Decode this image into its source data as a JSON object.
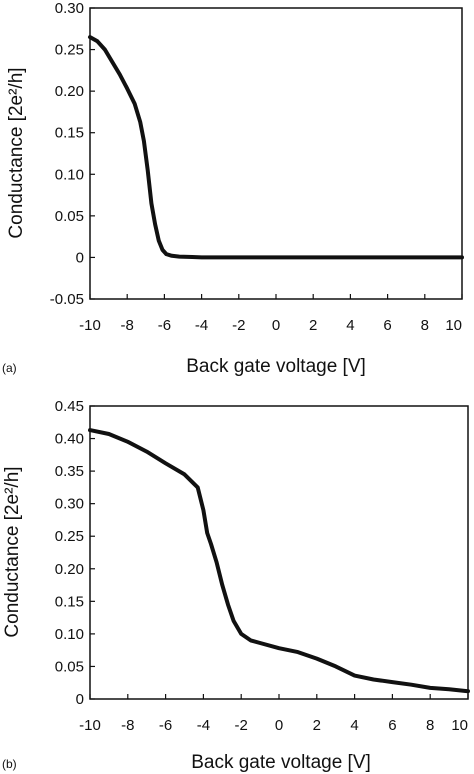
{
  "chart_data": [
    {
      "type": "line",
      "panel_label": "(a)",
      "xlabel": "Back gate voltage [V]",
      "ylabel": "Conductance [2e²/h]",
      "xlim": [
        -10,
        10
      ],
      "ylim": [
        -0.05,
        0.3
      ],
      "xticks": [
        "-10",
        "-8",
        "-6",
        "-4",
        "-2",
        "0",
        "2",
        "4",
        "6",
        "8",
        "10"
      ],
      "yticks": [
        "-0.05",
        "0",
        "0.05",
        "0.10",
        "0.15",
        "0.20",
        "0.25",
        "0.30"
      ],
      "grid": false,
      "series": [
        {
          "x": [
            -10,
            -9.6,
            -9.2,
            -8.8,
            -8.4,
            -8.0,
            -7.6,
            -7.3,
            -7.1,
            -6.9,
            -6.7,
            -6.5,
            -6.3,
            -6.1,
            -5.9,
            -5.6,
            -5.2,
            -4.5,
            -4.0,
            -2,
            0,
            2,
            4,
            6,
            8,
            10
          ],
          "y": [
            0.265,
            0.26,
            0.25,
            0.235,
            0.22,
            0.203,
            0.185,
            0.163,
            0.14,
            0.105,
            0.065,
            0.04,
            0.02,
            0.009,
            0.004,
            0.002,
            0.001,
            0.0005,
            0.0,
            0.0,
            0.0,
            0.0,
            0.0,
            0.0,
            0.0,
            0.0
          ]
        }
      ]
    },
    {
      "type": "line",
      "panel_label": "(b)",
      "xlabel": "Back gate voltage [V]",
      "ylabel": "Conductance [2e²/h]",
      "xlim": [
        -10,
        10
      ],
      "ylim": [
        0,
        0.45
      ],
      "xticks": [
        "-10",
        "-8",
        "-6",
        "-4",
        "-2",
        "0",
        "2",
        "4",
        "6",
        "8",
        "10"
      ],
      "yticks": [
        "0",
        "0.05",
        "0.10",
        "0.15",
        "0.20",
        "0.25",
        "0.30",
        "0.35",
        "0.40",
        "0.45"
      ],
      "grid": false,
      "series": [
        {
          "x": [
            -10,
            -9,
            -8,
            -7,
            -6,
            -5,
            -4.3,
            -4.0,
            -3.8,
            -3.6,
            -3.3,
            -3.0,
            -2.7,
            -2.4,
            -2.0,
            -1.5,
            -1.0,
            0,
            1.0,
            2.0,
            3.0,
            4.0,
            5.0,
            6.0,
            7.0,
            8.0,
            9.0,
            10.0
          ],
          "y": [
            0.413,
            0.407,
            0.395,
            0.38,
            0.362,
            0.345,
            0.325,
            0.29,
            0.255,
            0.238,
            0.21,
            0.175,
            0.145,
            0.12,
            0.1,
            0.09,
            0.086,
            0.078,
            0.072,
            0.062,
            0.05,
            0.036,
            0.03,
            0.026,
            0.022,
            0.017,
            0.015,
            0.012
          ]
        }
      ]
    }
  ]
}
